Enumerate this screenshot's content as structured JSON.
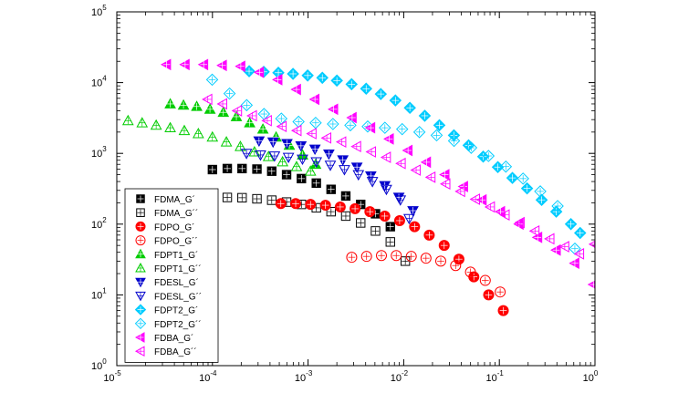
{
  "chart_data": {
    "type": "scatter",
    "title": "",
    "xlabel": "",
    "ylabel": "",
    "x_scale": "log",
    "y_scale": "log",
    "xlim": [
      1e-05,
      1
    ],
    "ylim": [
      1,
      100000
    ],
    "grid": false,
    "legend_position": "bottom-left",
    "x_ticks": [
      {
        "base": "10",
        "exp": "-5",
        "value": 1e-05
      },
      {
        "base": "10",
        "exp": "-4",
        "value": 0.0001
      },
      {
        "base": "10",
        "exp": "-3",
        "value": 0.001
      },
      {
        "base": "10",
        "exp": "-2",
        "value": 0.01
      },
      {
        "base": "10",
        "exp": "-1",
        "value": 0.1
      },
      {
        "base": "10",
        "exp": "0",
        "value": 1
      }
    ],
    "y_ticks": [
      {
        "base": "10",
        "exp": "0",
        "value": 1
      },
      {
        "base": "10",
        "exp": "1",
        "value": 10
      },
      {
        "base": "10",
        "exp": "2",
        "value": 100
      },
      {
        "base": "10",
        "exp": "3",
        "value": 1000
      },
      {
        "base": "10",
        "exp": "4",
        "value": 10000
      },
      {
        "base": "10",
        "exp": "5",
        "value": 100000
      }
    ],
    "series": [
      {
        "name": "FDMA_G´",
        "marker": "square",
        "filled": true,
        "color": "#000000",
        "x": [
          0.0001,
          0.000143,
          0.000204,
          0.000292,
          0.000417,
          0.000596,
          0.000852,
          0.00122,
          0.00174,
          0.00248,
          0.00355,
          0.00507,
          0.00725
        ],
        "y": [
          590,
          610,
          610,
          600,
          560,
          500,
          440,
          380,
          310,
          250,
          190,
          140,
          92
        ]
      },
      {
        "name": "FDMA_G´´",
        "marker": "square",
        "filled": false,
        "color": "#000000",
        "x": [
          0.0001,
          0.000143,
          0.000204,
          0.000292,
          0.000417,
          0.000596,
          0.000852,
          0.00122,
          0.00174,
          0.00248,
          0.00355,
          0.00507,
          0.00725,
          0.0104
        ],
        "y": [
          225,
          238,
          236,
          228,
          218,
          205,
          190,
          170,
          150,
          130,
          104,
          80,
          56,
          30
        ]
      },
      {
        "name": "FDPO_G´",
        "marker": "circle",
        "filled": true,
        "color": "#ff0000",
        "x": [
          0.000519,
          0.000742,
          0.00106,
          0.00152,
          0.00217,
          0.0031,
          0.00443,
          0.00634,
          0.00906,
          0.013,
          0.0185,
          0.0265,
          0.0378,
          0.0541,
          0.0773,
          0.11
        ],
        "y": [
          195,
          195,
          190,
          185,
          175,
          165,
          150,
          130,
          112,
          92,
          70,
          50,
          32,
          18,
          10,
          6
        ]
      },
      {
        "name": "FDPO_G´´",
        "marker": "circle",
        "filled": false,
        "color": "#ff0000",
        "x": [
          0.00286,
          0.00409,
          0.00585,
          0.00836,
          0.012,
          0.0171,
          0.0244,
          0.0349,
          0.0499,
          0.0713,
          0.102
        ],
        "y": [
          34,
          35,
          36,
          36,
          35,
          33,
          30,
          26,
          21,
          16,
          11
        ]
      },
      {
        "name": "FDPT1_G´",
        "marker": "triangle-up",
        "filled": true,
        "color": "#00cc00",
        "x": [
          3.62e-05,
          4.98e-05,
          6.85e-05,
          9.42e-05,
          0.00013,
          0.000178,
          0.000245,
          0.000337,
          0.000463,
          0.000637,
          0.000876,
          0.0012
        ],
        "y": [
          5000,
          4800,
          4600,
          4200,
          3800,
          3300,
          2700,
          2200,
          1700,
          1300,
          950,
          700
        ]
      },
      {
        "name": "FDPT1_G´´",
        "marker": "triangle-up",
        "filled": false,
        "color": "#00cc00",
        "x": [
          1.31e-05,
          1.84e-05,
          2.58e-05,
          3.62e-05,
          5.08e-05,
          7.12e-05,
          9.99e-05,
          0.00014,
          0.000196,
          0.000275,
          0.000386,
          0.000541,
          0.000758,
          0.00106
        ],
        "y": [
          2900,
          2700,
          2500,
          2300,
          2100,
          1900,
          1700,
          1450,
          1250,
          1050,
          900,
          760,
          650,
          560
        ]
      },
      {
        "name": "FDESL_G´",
        "marker": "triangle-down",
        "filled": true,
        "color": "#0000cc",
        "x": [
          0.000307,
          0.00043,
          0.000602,
          0.000843,
          0.00118,
          0.00165,
          0.00231,
          0.00324,
          0.00453,
          0.00635,
          0.00889,
          0.0125
        ],
        "y": [
          1500,
          1450,
          1380,
          1280,
          1150,
          980,
          810,
          640,
          480,
          350,
          240,
          155
        ]
      },
      {
        "name": "FDESL_G´´",
        "marker": "triangle-down",
        "filled": false,
        "color": "#0000cc",
        "x": [
          0.000227,
          0.000318,
          0.000446,
          0.000624,
          0.000874,
          0.00122,
          0.00171,
          0.0024,
          0.00336,
          0.00471,
          0.00659,
          0.00923,
          0.0114
        ],
        "y": [
          1000,
          950,
          920,
          880,
          830,
          760,
          680,
          590,
          500,
          400,
          310,
          220,
          120
        ]
      },
      {
        "name": "FDPT2_G´",
        "marker": "diamond",
        "filled": true,
        "color": "#00ccff",
        "x": [
          0.000242,
          0.000344,
          0.000489,
          0.000696,
          0.00099,
          0.00141,
          0.002,
          0.00285,
          0.00405,
          0.00576,
          0.00819,
          0.0116,
          0.0166,
          0.0236,
          0.0335,
          0.0477,
          0.0678,
          0.0965,
          0.137,
          0.195,
          0.277,
          0.394,
          0.56,
          0.7
        ],
        "y": [
          14500,
          14200,
          13800,
          13300,
          12600,
          11700,
          10700,
          9500,
          8200,
          6900,
          5600,
          4400,
          3400,
          2500,
          1800,
          1300,
          900,
          640,
          450,
          320,
          220,
          150,
          100,
          75
        ]
      },
      {
        "name": "FDPT2_G´´",
        "marker": "diamond",
        "filled": false,
        "color": "#00ccff",
        "x": [
          9.94e-05,
          0.000151,
          0.000228,
          0.000346,
          0.000525,
          0.000795,
          0.0012,
          0.00182,
          0.00277,
          0.0042,
          0.00636,
          0.00964,
          0.0146,
          0.0221,
          0.0336,
          0.0508,
          0.077,
          0.117,
          0.177,
          0.268,
          0.407,
          0.616
        ],
        "y": [
          11000,
          7000,
          4800,
          3600,
          3100,
          2800,
          2700,
          2600,
          2500,
          2400,
          2300,
          2200,
          2000,
          1800,
          1500,
          1200,
          920,
          650,
          440,
          290,
          180,
          45
        ]
      },
      {
        "name": "FDBA_G´",
        "marker": "triangle-left",
        "filled": true,
        "color": "#ff00ff",
        "x": [
          3.31e-05,
          5.18e-05,
          8.1e-05,
          0.000127,
          0.000198,
          0.00031,
          0.000484,
          0.000757,
          0.00118,
          0.00185,
          0.00289,
          0.00452,
          0.00707,
          0.0111,
          0.0173,
          0.027,
          0.0423,
          0.0661,
          0.103,
          0.161,
          0.252,
          0.394,
          0.616,
          0.963
        ],
        "y": [
          18000,
          18000,
          18000,
          17500,
          17000,
          14000,
          11000,
          8000,
          5800,
          4200,
          3200,
          2300,
          1600,
          1100,
          750,
          500,
          340,
          220,
          150,
          100,
          65,
          43,
          28,
          14
        ]
      },
      {
        "name": "FDBA_G´´",
        "marker": "triangle-left",
        "filled": false,
        "color": "#ff00ff",
        "x": [
          8.94e-05,
          0.000128,
          0.000183,
          0.000262,
          0.000375,
          0.000536,
          0.000767,
          0.0011,
          0.00157,
          0.00225,
          0.00322,
          0.0046,
          0.00659,
          0.00942,
          0.0135,
          0.0193,
          0.0276,
          0.0394,
          0.0564,
          0.0807,
          0.115,
          0.165,
          0.236,
          0.338,
          0.483,
          0.691,
          0.988
        ],
        "y": [
          5800,
          5000,
          4000,
          3400,
          2900,
          2400,
          2100,
          1900,
          1650,
          1450,
          1250,
          1050,
          880,
          720,
          580,
          460,
          370,
          290,
          225,
          175,
          135,
          105,
          80,
          62,
          48,
          38,
          52
        ]
      }
    ]
  }
}
